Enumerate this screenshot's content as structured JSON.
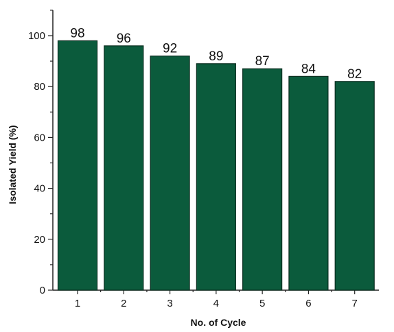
{
  "chart_data": {
    "type": "bar",
    "categories": [
      "1",
      "2",
      "3",
      "4",
      "5",
      "6",
      "7"
    ],
    "values": [
      98,
      96,
      92,
      89,
      87,
      84,
      82
    ],
    "data_labels": [
      "98",
      "96",
      "92",
      "89",
      "87",
      "84",
      "82"
    ],
    "title": "",
    "xlabel": "No. of Cycle",
    "ylabel": "Isolated Yield (%)",
    "ylim": [
      0,
      110
    ],
    "y_ticks": [
      "0",
      "20",
      "40",
      "60",
      "80",
      "100"
    ],
    "grid": false,
    "legend": "none",
    "colors": {
      "bar": "#0b5b3c",
      "bar_edge": "#0a2e20",
      "axis": "#222222"
    }
  }
}
